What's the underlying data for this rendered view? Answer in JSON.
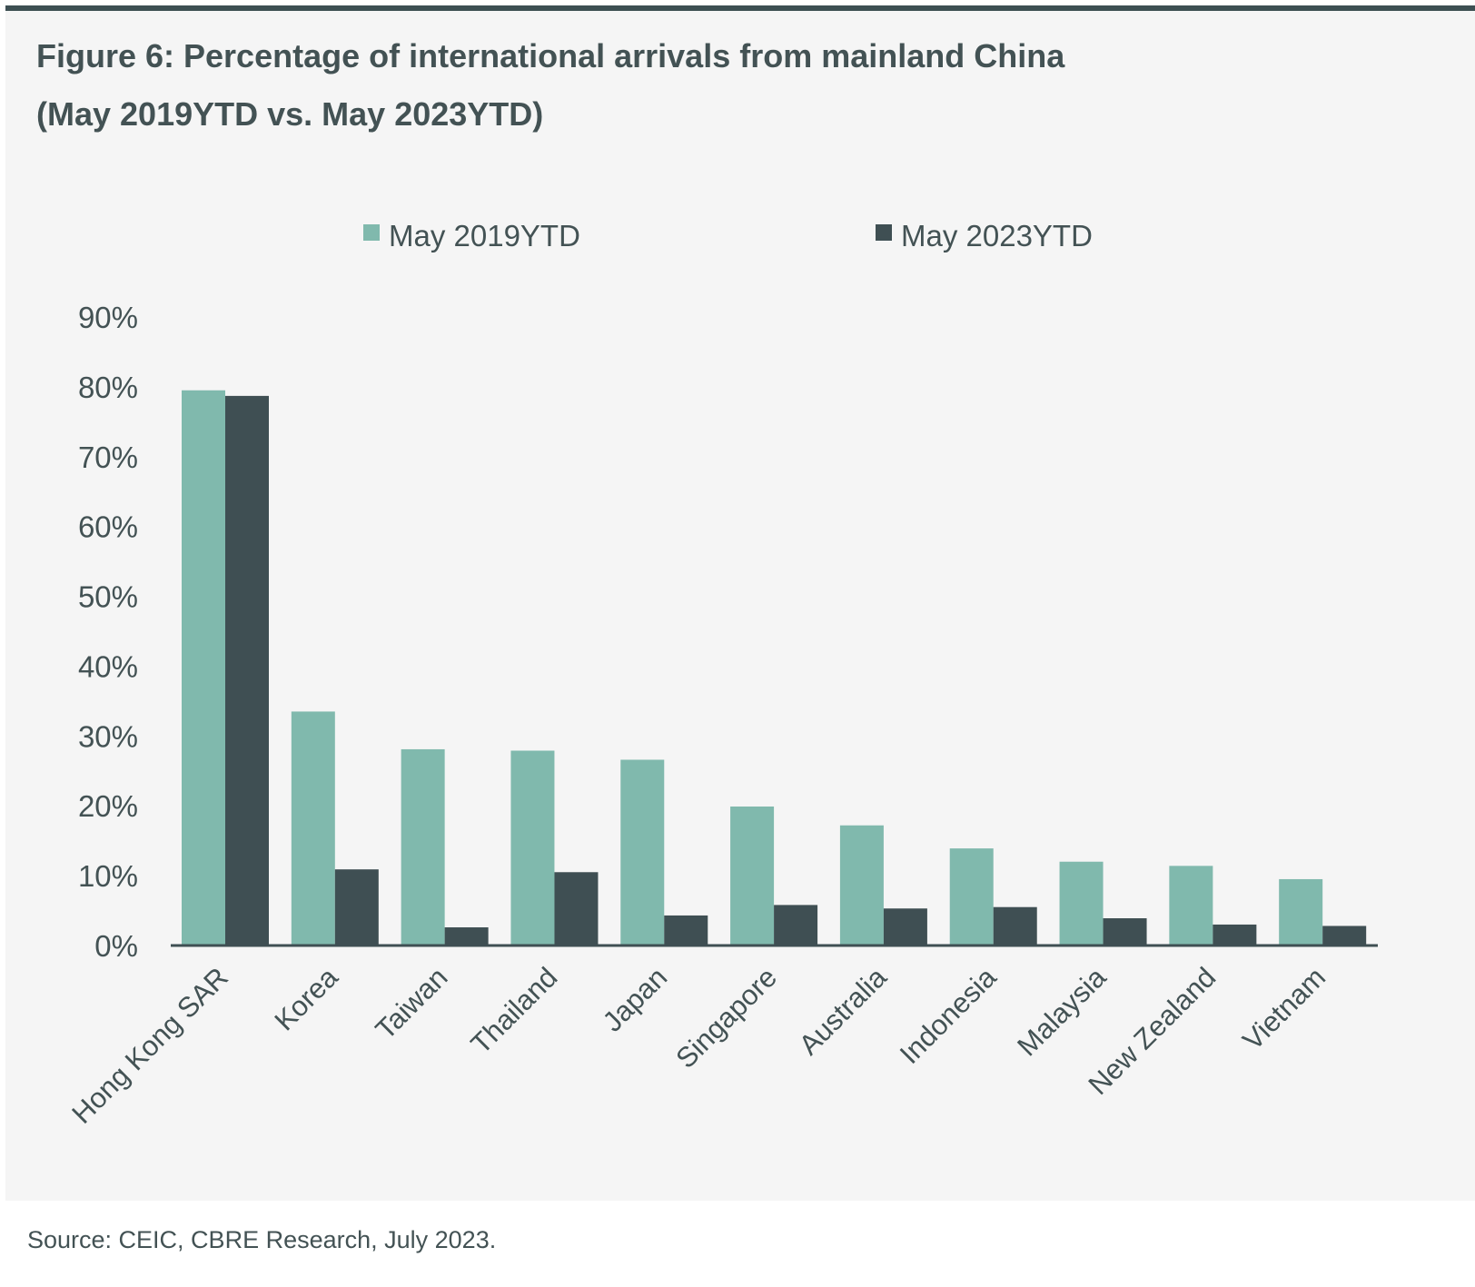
{
  "colors": {
    "series_2019": "#80b9ad",
    "series_2023": "#3f4f53",
    "axis": "#3f4f53",
    "text": "#435254",
    "panel": "#f5f5f5"
  },
  "chart_data": {
    "type": "bar",
    "title_line1": "Figure 6:  Percentage of international arrivals from mainland China",
    "title_line2": "(May 2019YTD vs. May 2023YTD)",
    "categories": [
      "Hong Kong SAR",
      "Korea",
      "Taiwan",
      "Thailand",
      "Japan",
      "Singapore",
      "Australia",
      "Indonesia",
      "Malaysia",
      "New Zealand",
      "Vietnam"
    ],
    "series": [
      {
        "name": "May 2019YTD",
        "values": [
          79.5,
          33.5,
          28.1,
          27.9,
          26.6,
          19.9,
          17.2,
          13.9,
          12.0,
          11.4,
          9.5
        ]
      },
      {
        "name": "May 2023YTD",
        "values": [
          78.7,
          10.9,
          2.6,
          10.5,
          4.3,
          5.8,
          5.3,
          5.5,
          3.9,
          3.0,
          2.8
        ]
      }
    ],
    "y_ticks": [
      "0%",
      "10%",
      "20%",
      "30%",
      "40%",
      "50%",
      "60%",
      "70%",
      "80%",
      "90%"
    ],
    "ylim": [
      0,
      90
    ],
    "xlabel": "",
    "ylabel": "",
    "legend_position": "top-center",
    "grid": false
  },
  "source": "Source: CEIC, CBRE Research, July 2023."
}
